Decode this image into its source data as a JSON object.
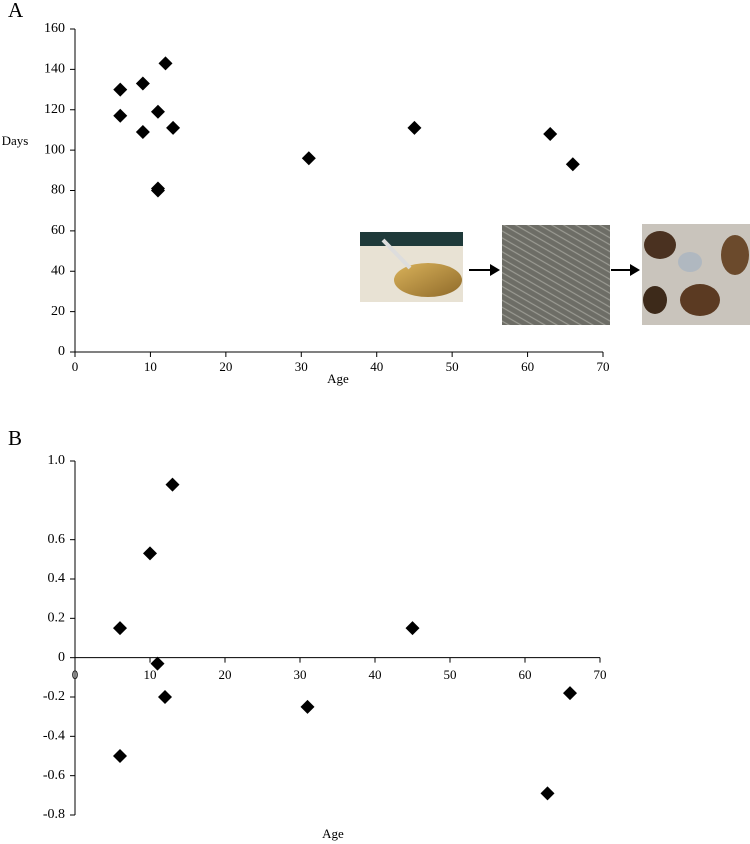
{
  "chart_data": [
    {
      "type": "scatter",
      "panel_label": "A",
      "x_label": "Age",
      "y_label": "Days",
      "color": "#000000",
      "x": [
        6,
        6,
        9,
        9,
        12,
        11,
        13,
        11,
        11,
        31,
        45,
        63,
        66
      ],
      "values": [
        130,
        117,
        133,
        109,
        143,
        119,
        111,
        81,
        80,
        96,
        111,
        108,
        93
      ],
      "xlim": [
        0,
        70
      ],
      "xticks": [
        0,
        10,
        20,
        30,
        40,
        50,
        60,
        70
      ],
      "ylim": [
        0,
        160
      ],
      "yticks": [
        0,
        20,
        40,
        60,
        80,
        100,
        120,
        140,
        160
      ]
    },
    {
      "type": "scatter",
      "panel_label": "B",
      "x_label": "Age",
      "color": "#000000",
      "x": [
        6,
        6,
        10,
        13,
        11,
        12,
        31,
        45,
        63,
        66
      ],
      "values": [
        0.15,
        -0.5,
        0.53,
        0.88,
        -0.03,
        -0.2,
        -0.25,
        0.15,
        -0.69,
        -0.18
      ],
      "xlim": [
        0,
        70
      ],
      "xticks": [
        0,
        10,
        20,
        30,
        40,
        50,
        60,
        70
      ],
      "ylim": [
        -0.8,
        1
      ],
      "yticks": [
        -0.8,
        -0.6,
        -0.4,
        -0.2,
        0,
        0.2,
        0.4,
        0.6,
        {
          "value": 1,
          "label": "1.0"
        }
      ]
    }
  ]
}
